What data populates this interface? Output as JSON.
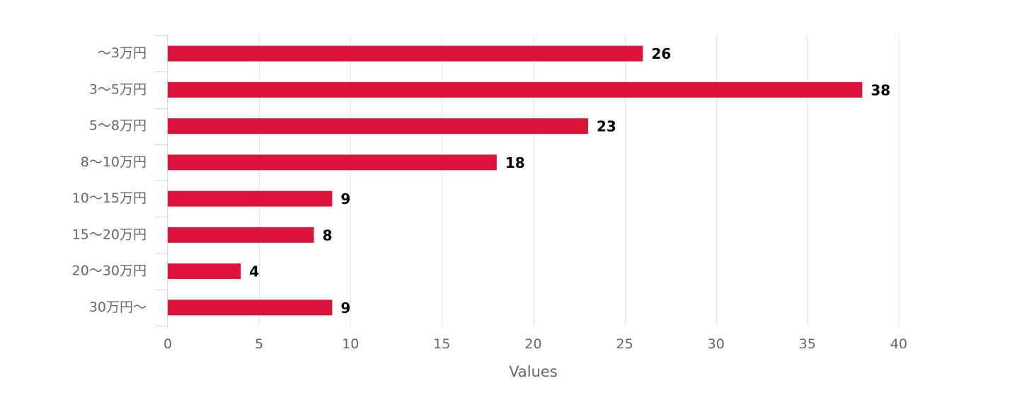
{
  "chart_data": {
    "type": "bar",
    "orientation": "horizontal",
    "categories": [
      "〜3万円",
      "3〜5万円",
      "5〜8万円",
      "8〜10万円",
      "10〜15万円",
      "15〜20万円",
      "20〜30万円",
      "30万円〜"
    ],
    "values": [
      26,
      38,
      23,
      18,
      9,
      8,
      4,
      9
    ],
    "title": "",
    "xlabel": "Values",
    "ylabel": "",
    "xlim": [
      0,
      40
    ],
    "x_ticks": [
      "0",
      "5",
      "10",
      "15",
      "20",
      "25",
      "30",
      "35",
      "40"
    ],
    "grid": "vertical",
    "legend": "none",
    "data_labels": true
  },
  "colors": {
    "bar": "#dc143c",
    "grid": "#e6e6e6",
    "axis": "#ccd6eb",
    "label_text": "#666666",
    "value_text": "#000000"
  }
}
